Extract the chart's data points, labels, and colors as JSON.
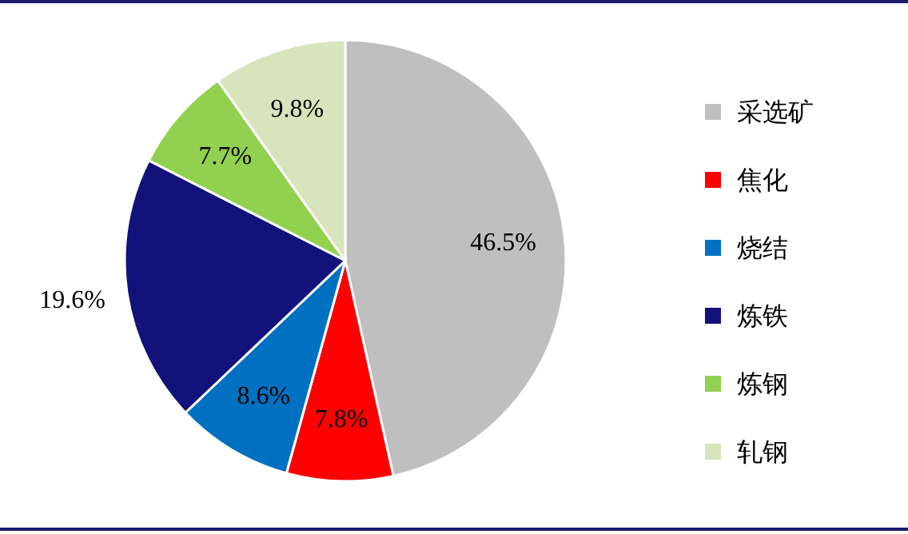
{
  "chart_data": {
    "type": "pie",
    "categories": [
      "采选矿",
      "焦化",
      "烧结",
      "炼铁",
      "炼钢",
      "轧钢"
    ],
    "values": [
      46.5,
      7.8,
      8.6,
      19.6,
      7.7,
      9.8
    ],
    "colors": [
      "#bfbfbf",
      "#ff0000",
      "#0070c0",
      "#12127a",
      "#92d050",
      "#d7e4bd"
    ],
    "value_labels": [
      "46.5%",
      "7.8%",
      "8.6%",
      "19.6%",
      "7.7%",
      "9.8%"
    ],
    "legend": "right"
  }
}
